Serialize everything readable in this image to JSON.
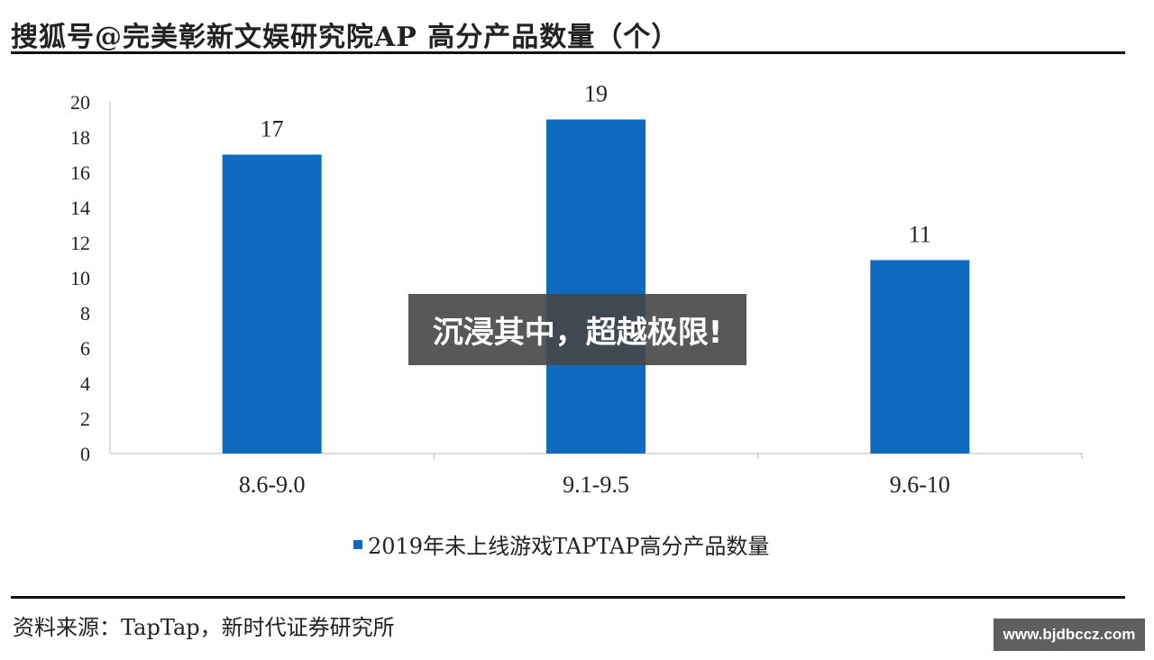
{
  "chart_data": {
    "type": "bar",
    "title": "搜狐号@完美彰新文娱研究院AP 高分产品数量（个）",
    "categories": [
      "8.6-9.0",
      "9.1-9.5",
      "9.6-10"
    ],
    "series": [
      {
        "name": "2019年未上线游戏TAPTAP高分产品数量",
        "values": [
          17,
          19,
          11
        ],
        "color": "#0e6bc0"
      }
    ],
    "data_labels": [
      "17",
      "19",
      "11"
    ],
    "ylim": [
      0,
      20
    ],
    "yticks": [
      "0",
      "2",
      "4",
      "6",
      "8",
      "10",
      "12",
      "14",
      "16",
      "18",
      "20"
    ],
    "xlabel": "",
    "ylabel": "",
    "grid": false,
    "legend": "bottom",
    "source": "资料来源：TapTap，新时代证券研究所"
  },
  "overlay": {
    "banner": "沉浸其中，超越极限!",
    "watermark": "www.bjdbccz.com"
  }
}
